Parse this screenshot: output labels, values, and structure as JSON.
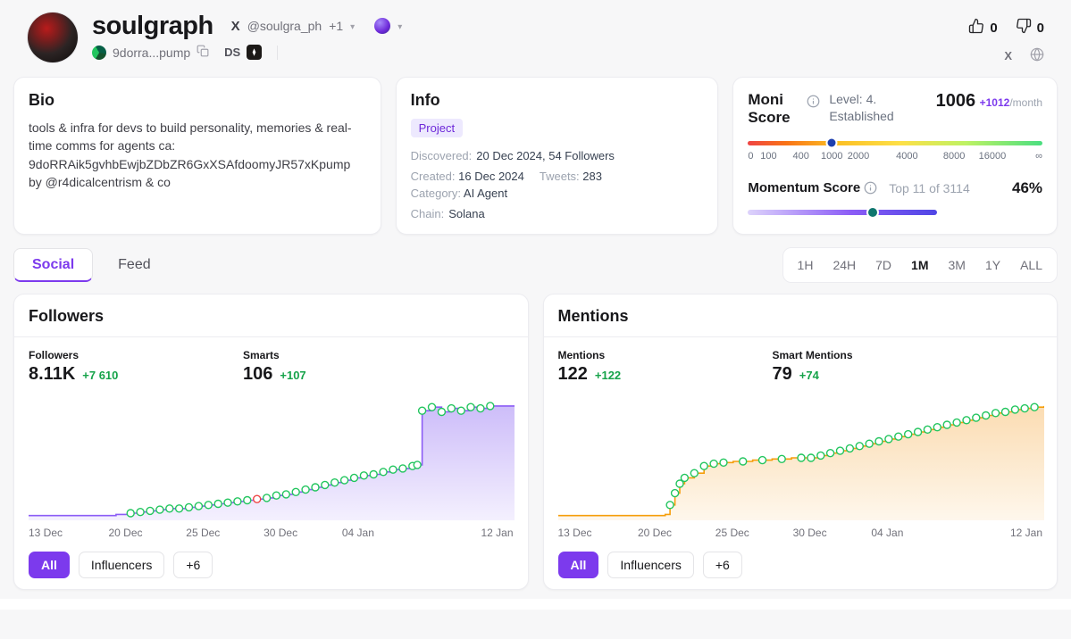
{
  "colors": {
    "accent": "#7c3aed",
    "positive": "#16a34a",
    "followers_line": "#8b5cf6",
    "mentions_line": "#f59e0b",
    "marker_ring": "#22c55e"
  },
  "icons": {
    "x_logo": "X",
    "chevron_down": "▾"
  },
  "header": {
    "title": "soulgraph",
    "x_handle": "@soulgra_ph",
    "x_more": "+1",
    "address_short": "9dorra...pump",
    "ds_label": "DS",
    "upvotes": "0",
    "downvotes": "0"
  },
  "bio": {
    "title": "Bio",
    "text": "tools & infra for devs to build personality, memories & real-time comms for agents ca: 9doRRAik5gvhbEwjbZDbZR6GxXSAfdoomyJR57xKpump by @r4dicalcentrism & co"
  },
  "info": {
    "title": "Info",
    "badge": "Project",
    "discovered_label": "Discovered:",
    "discovered_value": "20 Dec 2024, 54 Followers",
    "created_label": "Created:",
    "created_value": "16 Dec 2024",
    "tweets_label": "Tweets:",
    "tweets_value": "283",
    "category_label": "Category:",
    "category_value": "AI Agent",
    "chain_label": "Chain:",
    "chain_value": "Solana"
  },
  "moni": {
    "title": "Moni Score",
    "level": "Level: 4. Established",
    "score": "1006",
    "delta": "+1012",
    "per": "/month",
    "ticks": [
      "0",
      "100",
      "400",
      "1000",
      "2000",
      "4000",
      "8000",
      "16000",
      "∞"
    ],
    "momentum_label": "Momentum Score",
    "momentum_rank": "Top 11 of 3114",
    "momentum_value": "46%"
  },
  "tabs": {
    "social": "Social",
    "feed": "Feed",
    "ranges": [
      "1H",
      "24H",
      "7D",
      "1M",
      "3M",
      "1Y",
      "ALL"
    ],
    "active_range": "1M"
  },
  "followers_card": {
    "title": "Followers",
    "stat1_label": "Followers",
    "stat1_value": "8.11K",
    "stat1_delta": "+7 610",
    "stat2_label": "Smarts",
    "stat2_value": "106",
    "stat2_delta": "+107",
    "filters": [
      "All",
      "Influencers",
      "+6"
    ]
  },
  "mentions_card": {
    "title": "Mentions",
    "stat1_label": "Mentions",
    "stat1_value": "122",
    "stat1_delta": "+122",
    "stat2_label": "Smart Mentions",
    "stat2_value": "79",
    "stat2_delta": "+74",
    "filters": [
      "All",
      "Influencers",
      "+6"
    ]
  },
  "chart_data": [
    {
      "type": "area",
      "title": "Followers over 1M",
      "color": "#8b5cf6",
      "fill_top": "#cdbdf9",
      "fill_bottom": "#f4f0fe",
      "marker_color": "#22c55e",
      "x_ticks": [
        "13 Dec",
        "20 Dec",
        "25 Dec",
        "30 Dec",
        "04 Jan",
        "12 Jan"
      ],
      "y_note": "relative scale, end value 8.11K followers (+7 610 in period)",
      "points": [
        [
          0,
          1,
          0
        ],
        [
          6,
          1,
          0
        ],
        [
          12,
          1,
          0
        ],
        [
          18,
          2,
          0
        ],
        [
          21,
          3,
          1
        ],
        [
          23,
          4,
          1
        ],
        [
          25,
          5,
          1
        ],
        [
          27,
          6,
          1
        ],
        [
          29,
          7,
          1
        ],
        [
          31,
          7,
          1
        ],
        [
          33,
          8,
          1
        ],
        [
          35,
          9,
          1
        ],
        [
          37,
          10,
          1
        ],
        [
          39,
          11,
          1
        ],
        [
          41,
          12,
          1
        ],
        [
          43,
          13,
          1
        ],
        [
          45,
          14,
          1
        ],
        [
          47,
          15,
          1,
          "r"
        ],
        [
          49,
          16,
          1
        ],
        [
          51,
          18,
          1
        ],
        [
          53,
          19,
          1
        ],
        [
          55,
          21,
          1
        ],
        [
          57,
          23,
          1
        ],
        [
          59,
          25,
          1
        ],
        [
          61,
          27,
          1
        ],
        [
          63,
          29,
          1
        ],
        [
          65,
          31,
          1
        ],
        [
          67,
          33,
          1
        ],
        [
          69,
          35,
          1
        ],
        [
          71,
          36,
          1
        ],
        [
          73,
          38,
          1
        ],
        [
          75,
          40,
          1
        ],
        [
          77,
          41,
          1
        ],
        [
          79,
          43,
          1
        ],
        [
          80,
          44,
          1
        ],
        [
          81,
          90,
          1
        ],
        [
          83,
          93,
          1
        ],
        [
          85,
          89,
          1
        ],
        [
          87,
          92,
          1
        ],
        [
          89,
          90,
          1
        ],
        [
          91,
          93,
          1
        ],
        [
          93,
          92,
          1
        ],
        [
          95,
          94,
          1
        ],
        [
          100,
          94,
          0
        ]
      ]
    },
    {
      "type": "area",
      "title": "Mentions over 1M",
      "color": "#f59e0b",
      "fill_top": "#fbdcb2",
      "fill_bottom": "#fef7ec",
      "marker_color": "#22c55e",
      "x_ticks": [
        "13 Dec",
        "20 Dec",
        "25 Dec",
        "30 Dec",
        "04 Jan",
        "12 Jan"
      ],
      "y_note": "relative scale, end value 122 mentions (+122 in period)",
      "points": [
        [
          0,
          1,
          0
        ],
        [
          8,
          1,
          0
        ],
        [
          16,
          1,
          0
        ],
        [
          22,
          2,
          0
        ],
        [
          23,
          10,
          1
        ],
        [
          24,
          20,
          1
        ],
        [
          25,
          28,
          1
        ],
        [
          26,
          33,
          1
        ],
        [
          28,
          37,
          1
        ],
        [
          30,
          43,
          1
        ],
        [
          32,
          45,
          1
        ],
        [
          34,
          46,
          1
        ],
        [
          36,
          47,
          0
        ],
        [
          38,
          47,
          1
        ],
        [
          40,
          48,
          0
        ],
        [
          42,
          48,
          1
        ],
        [
          44,
          49,
          0
        ],
        [
          46,
          49,
          1
        ],
        [
          48,
          50,
          0
        ],
        [
          50,
          50,
          1
        ],
        [
          52,
          50,
          1
        ],
        [
          54,
          52,
          1
        ],
        [
          56,
          54,
          1
        ],
        [
          58,
          56,
          1
        ],
        [
          60,
          58,
          1
        ],
        [
          62,
          60,
          1
        ],
        [
          64,
          62,
          1
        ],
        [
          66,
          64,
          1
        ],
        [
          68,
          66,
          1
        ],
        [
          70,
          68,
          1
        ],
        [
          72,
          70,
          1
        ],
        [
          74,
          72,
          1
        ],
        [
          76,
          74,
          1
        ],
        [
          78,
          76,
          1
        ],
        [
          80,
          78,
          1
        ],
        [
          82,
          80,
          1
        ],
        [
          84,
          82,
          1
        ],
        [
          86,
          84,
          1
        ],
        [
          88,
          86,
          1
        ],
        [
          90,
          88,
          1
        ],
        [
          92,
          89,
          1
        ],
        [
          94,
          91,
          1
        ],
        [
          96,
          92,
          1
        ],
        [
          98,
          93,
          1
        ],
        [
          100,
          94,
          0
        ]
      ]
    }
  ]
}
